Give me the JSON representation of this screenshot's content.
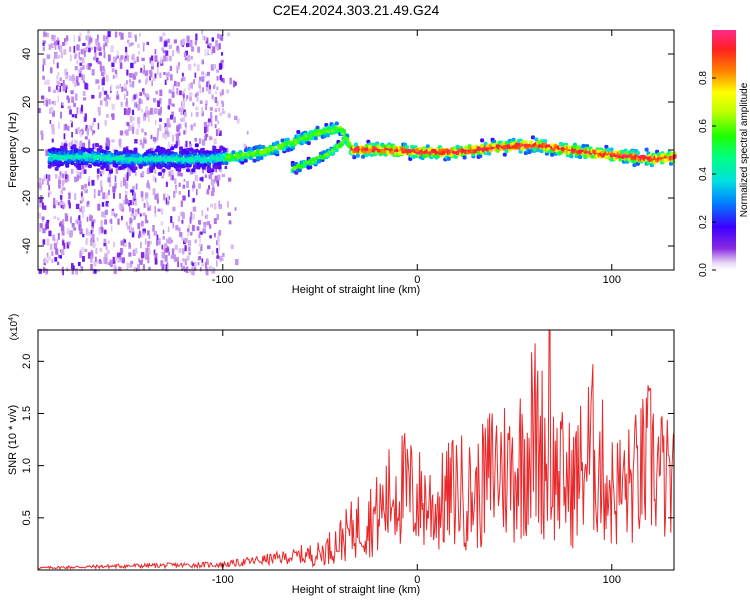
{
  "title": "C2E4.2024.303.21.49.G24",
  "chart_data": [
    {
      "type": "heatmap",
      "xlabel": "Height of straight line (km)",
      "ylabel": "Frequency (Hz)",
      "xlim": [
        -195,
        132
      ],
      "ylim": [
        -50,
        50
      ],
      "xticks": [
        -100,
        0,
        100
      ],
      "xtick_labels": [
        "-100",
        "0",
        "100"
      ],
      "yticks": [
        -40,
        -20,
        0,
        20,
        40
      ],
      "ytick_labels": [
        "-40",
        "-20",
        "0",
        "20",
        "40"
      ],
      "colorbar": {
        "label": "Normalized spectral amplitude",
        "range": [
          0,
          1
        ],
        "ticks": [
          0.0,
          0.2,
          0.4,
          0.6,
          0.8
        ],
        "tick_labels": [
          "0.0",
          "0.2",
          "0.4",
          "0.6",
          "0.8"
        ]
      },
      "ridge": {
        "x": [
          -190,
          -170,
          -150,
          -130,
          -110,
          -95,
          -80,
          -65,
          -52,
          -40,
          -35,
          -20,
          0,
          20,
          40,
          60,
          75,
          95,
          110,
          120,
          132
        ],
        "y": [
          -2,
          -2,
          -3,
          -3,
          -3,
          -2,
          0,
          4,
          8,
          10,
          1,
          1,
          0,
          0,
          2,
          3,
          1,
          -1,
          -2,
          -3,
          -2
        ]
      },
      "secondary_ridge": {
        "x": [
          -65,
          -55,
          -45,
          -38
        ],
        "y": [
          -7,
          -4,
          0,
          5
        ]
      },
      "scatter_region_x": [
        -195,
        -100
      ],
      "grid": false
    },
    {
      "type": "line",
      "xlabel": "Height of straight line (km)",
      "ylabel": "SNR (10 * v/v)",
      "scale_label": "(x10",
      "scale_exp": "4",
      "scale_close": ")",
      "xlim": [
        -195,
        132
      ],
      "ylim": [
        0,
        2.3
      ],
      "xticks": [
        -100,
        0,
        100
      ],
      "xtick_labels": [
        "-100",
        "0",
        "100"
      ],
      "yticks": [
        0.5,
        1.0,
        1.5,
        2.0
      ],
      "ytick_labels": [
        "0.5",
        "1.0",
        "1.5",
        "2.0"
      ],
      "color": "#e8282a",
      "envelope": {
        "x": [
          -195,
          -150,
          -100,
          -70,
          -50,
          -40,
          -30,
          -20,
          -10,
          0,
          10,
          20,
          30,
          40,
          50,
          60,
          70,
          80,
          90,
          100,
          110,
          120,
          132
        ],
        "y": [
          0.03,
          0.06,
          0.08,
          0.18,
          0.25,
          0.45,
          0.7,
          0.85,
          1.3,
          1.1,
          0.95,
          1.25,
          1.1,
          1.6,
          1.5,
          2.1,
          1.5,
          1.3,
          1.85,
          1.2,
          1.3,
          1.7,
          1.2
        ]
      },
      "peak": {
        "x": 68,
        "y": 2.3
      },
      "grid": false
    }
  ]
}
